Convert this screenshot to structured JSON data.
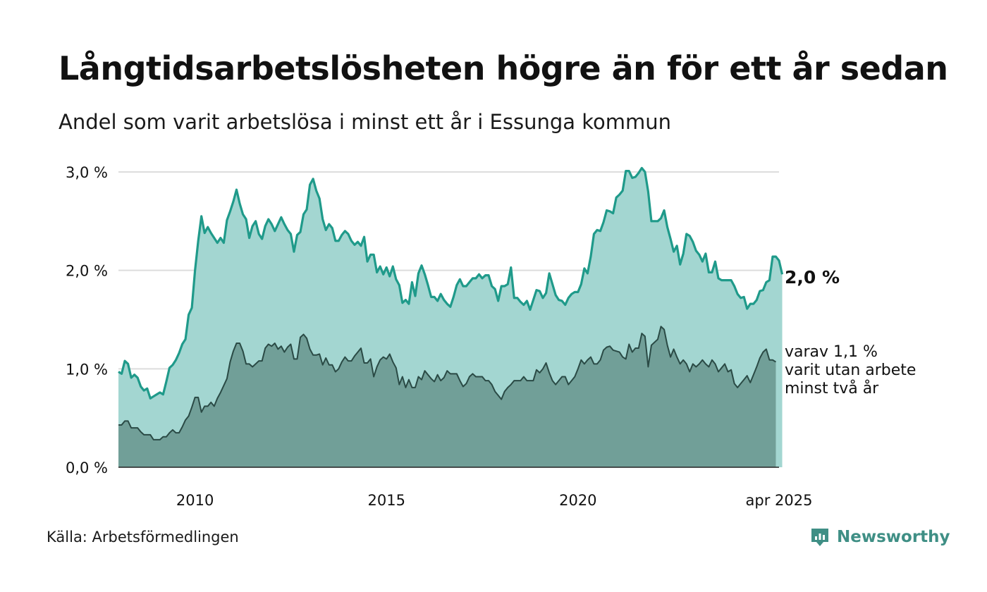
{
  "title": "Långtidsarbetslösheten högre än för ett år sedan",
  "subtitle": "Andel som varit arbetslösa i minst ett år i Essunga kommun",
  "source": "Källa: Arbetsförmedlingen",
  "brand": {
    "name": "Newsworthy",
    "icon": "newsworthy-logo-icon",
    "color": "#3f8f85"
  },
  "colors": {
    "main_line": "#1f9a8a",
    "main_fill": "#a3d6d1",
    "sub_line": "#2a4a45",
    "sub_fill": "#719f98",
    "grid": "#dddddd"
  },
  "chart_data": {
    "type": "area",
    "x_start": "2008-01",
    "x_end": "2025-04",
    "frequency": "monthly",
    "ylim": [
      0,
      3.0
    ],
    "yticks": [
      0,
      1.0,
      2.0,
      3.0
    ],
    "ytick_labels": [
      "0,0 %",
      "1,0 %",
      "2,0 %",
      "3,0 %"
    ],
    "xticks": [
      "2010-01",
      "2015-01",
      "2020-01",
      "2025-04"
    ],
    "xtick_labels": [
      "2010",
      "2015",
      "2020",
      "apr 2025"
    ],
    "grid": true,
    "annotations": {
      "main_label": "2,0 %",
      "sub_label_lines": [
        "varav 1,1 %",
        "varit utan arbete",
        "minst två år"
      ]
    },
    "series": [
      {
        "key": "minst_ett_ar",
        "values": [
          0.97,
          0.95,
          1.08,
          1.05,
          0.91,
          0.94,
          0.91,
          0.82,
          0.78,
          0.8,
          0.7,
          0.72,
          0.74,
          0.76,
          0.74,
          0.87,
          1.01,
          1.04,
          1.09,
          1.16,
          1.25,
          1.3,
          1.55,
          1.62,
          2.0,
          2.3,
          2.55,
          2.38,
          2.44,
          2.38,
          2.33,
          2.28,
          2.33,
          2.28,
          2.51,
          2.6,
          2.7,
          2.82,
          2.68,
          2.57,
          2.52,
          2.33,
          2.45,
          2.5,
          2.37,
          2.32,
          2.45,
          2.52,
          2.47,
          2.4,
          2.47,
          2.54,
          2.47,
          2.41,
          2.37,
          2.19,
          2.36,
          2.39,
          2.57,
          2.62,
          2.87,
          2.93,
          2.81,
          2.73,
          2.52,
          2.41,
          2.47,
          2.43,
          2.3,
          2.3,
          2.36,
          2.4,
          2.37,
          2.3,
          2.26,
          2.29,
          2.25,
          2.34,
          2.09,
          2.16,
          2.16,
          1.98,
          2.04,
          1.96,
          2.03,
          1.94,
          2.04,
          1.91,
          1.85,
          1.67,
          1.7,
          1.66,
          1.88,
          1.74,
          1.97,
          2.05,
          1.96,
          1.85,
          1.73,
          1.73,
          1.69,
          1.76,
          1.7,
          1.66,
          1.63,
          1.73,
          1.85,
          1.91,
          1.84,
          1.84,
          1.88,
          1.92,
          1.92,
          1.96,
          1.92,
          1.95,
          1.95,
          1.84,
          1.81,
          1.69,
          1.84,
          1.84,
          1.86,
          2.03,
          1.72,
          1.72,
          1.68,
          1.65,
          1.69,
          1.6,
          1.7,
          1.8,
          1.79,
          1.72,
          1.77,
          1.97,
          1.86,
          1.75,
          1.7,
          1.69,
          1.65,
          1.72,
          1.76,
          1.78,
          1.78,
          1.86,
          2.02,
          1.97,
          2.14,
          2.37,
          2.41,
          2.4,
          2.49,
          2.61,
          2.6,
          2.58,
          2.74,
          2.77,
          2.81,
          3.01,
          3.01,
          2.94,
          2.95,
          2.99,
          3.04,
          3.0,
          2.8,
          2.5,
          2.5,
          2.5,
          2.53,
          2.61,
          2.44,
          2.32,
          2.19,
          2.25,
          2.06,
          2.17,
          2.37,
          2.35,
          2.29,
          2.2,
          2.16,
          2.09,
          2.17,
          1.98,
          1.98,
          2.09,
          1.92,
          1.9,
          1.9,
          1.9,
          1.9,
          1.84,
          1.76,
          1.72,
          1.73,
          1.61,
          1.66,
          1.66,
          1.7,
          1.79,
          1.8,
          1.88,
          1.9,
          2.14,
          2.14,
          2.1,
          1.96
        ]
      },
      {
        "key": "minst_tva_ar",
        "values": [
          0.43,
          0.43,
          0.47,
          0.47,
          0.4,
          0.4,
          0.4,
          0.36,
          0.33,
          0.33,
          0.33,
          0.28,
          0.28,
          0.28,
          0.31,
          0.31,
          0.35,
          0.38,
          0.35,
          0.35,
          0.41,
          0.48,
          0.52,
          0.61,
          0.71,
          0.71,
          0.56,
          0.62,
          0.62,
          0.66,
          0.62,
          0.7,
          0.76,
          0.83,
          0.9,
          1.07,
          1.18,
          1.26,
          1.26,
          1.18,
          1.05,
          1.05,
          1.02,
          1.05,
          1.08,
          1.08,
          1.21,
          1.25,
          1.23,
          1.26,
          1.2,
          1.23,
          1.17,
          1.22,
          1.25,
          1.1,
          1.1,
          1.32,
          1.35,
          1.31,
          1.2,
          1.14,
          1.14,
          1.15,
          1.04,
          1.11,
          1.04,
          1.04,
          0.97,
          1.0,
          1.07,
          1.12,
          1.08,
          1.08,
          1.13,
          1.17,
          1.21,
          1.06,
          1.06,
          1.1,
          0.92,
          1.02,
          1.09,
          1.12,
          1.1,
          1.15,
          1.07,
          1.01,
          0.84,
          0.92,
          0.81,
          0.89,
          0.81,
          0.81,
          0.92,
          0.89,
          0.98,
          0.94,
          0.9,
          0.87,
          0.94,
          0.88,
          0.91,
          0.98,
          0.95,
          0.95,
          0.95,
          0.88,
          0.82,
          0.85,
          0.92,
          0.95,
          0.92,
          0.92,
          0.92,
          0.88,
          0.88,
          0.84,
          0.77,
          0.73,
          0.69,
          0.77,
          0.81,
          0.84,
          0.88,
          0.88,
          0.88,
          0.92,
          0.88,
          0.88,
          0.88,
          0.99,
          0.96,
          1.0,
          1.06,
          0.96,
          0.88,
          0.84,
          0.88,
          0.92,
          0.92,
          0.84,
          0.88,
          0.92,
          1.0,
          1.09,
          1.05,
          1.09,
          1.12,
          1.05,
          1.05,
          1.09,
          1.19,
          1.22,
          1.23,
          1.19,
          1.18,
          1.17,
          1.12,
          1.1,
          1.25,
          1.17,
          1.21,
          1.21,
          1.36,
          1.33,
          1.02,
          1.24,
          1.27,
          1.3,
          1.43,
          1.4,
          1.24,
          1.12,
          1.2,
          1.12,
          1.05,
          1.09,
          1.05,
          0.97,
          1.05,
          1.02,
          1.05,
          1.09,
          1.05,
          1.02,
          1.09,
          1.05,
          0.97,
          1.01,
          1.05,
          0.97,
          0.99,
          0.85,
          0.81,
          0.85,
          0.89,
          0.93,
          0.86,
          0.94,
          1.02,
          1.11,
          1.17,
          1.2,
          1.09,
          1.09,
          1.07
        ]
      }
    ]
  }
}
